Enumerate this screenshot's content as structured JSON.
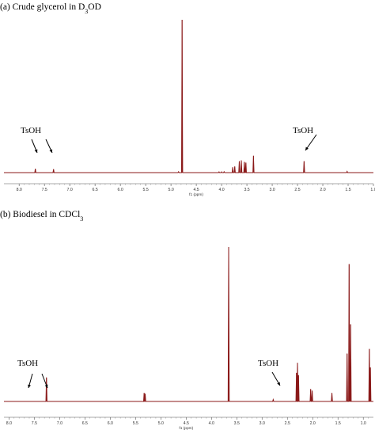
{
  "chart_data": [
    {
      "type": "line",
      "title_main": "(a) Crude glycerol in D",
      "title_sub": "3",
      "title_tail": "OD",
      "xlabel": "f1 (ppm)",
      "xlim": [
        8.3,
        1.0
      ],
      "ticks": [
        "8.0",
        "7.5",
        "7.0",
        "6.5",
        "6.0",
        "5.5",
        "5.0",
        "4.5",
        "4.0",
        "3.5",
        "3.0",
        "2.5",
        "2.0",
        "1.5",
        "1.0"
      ],
      "tick_values": [
        8.0,
        7.5,
        7.0,
        6.5,
        6.0,
        5.5,
        5.0,
        4.5,
        4.0,
        3.5,
        3.0,
        2.5,
        2.0,
        1.5,
        1.0
      ],
      "line_color": "#8b1a1a",
      "peaks": [
        {
          "x": 7.68,
          "y": 0.025
        },
        {
          "x": 7.32,
          "y": 0.022
        },
        {
          "x": 4.85,
          "y": 0.006
        },
        {
          "x": 4.78,
          "y": 1.0
        },
        {
          "x": 4.05,
          "y": 0.005
        },
        {
          "x": 4.0,
          "y": 0.005
        },
        {
          "x": 3.95,
          "y": 0.006
        },
        {
          "x": 3.78,
          "y": 0.035
        },
        {
          "x": 3.74,
          "y": 0.04
        },
        {
          "x": 3.65,
          "y": 0.075
        },
        {
          "x": 3.61,
          "y": 0.08
        },
        {
          "x": 3.55,
          "y": 0.07
        },
        {
          "x": 3.52,
          "y": 0.065
        },
        {
          "x": 3.37,
          "y": 0.11
        },
        {
          "x": 2.37,
          "y": 0.075
        },
        {
          "x": 1.52,
          "y": 0.008
        }
      ],
      "annotations": [
        {
          "text": "TsOH",
          "x": 7.5
        },
        {
          "text": "TsOH",
          "x": 2.37
        }
      ]
    },
    {
      "type": "line",
      "title_main": "(b) Biodiesel in CDCl",
      "title_sub": "3",
      "title_tail": "",
      "xlabel": "f1 (ppm)",
      "xlim": [
        8.1,
        0.8
      ],
      "ticks": [
        "8.0",
        "7.5",
        "7.0",
        "6.5",
        "6.0",
        "5.5",
        "5.0",
        "4.5",
        "4.0",
        "3.5",
        "3.0",
        "2.5",
        "2.0",
        "1.5",
        "1.0"
      ],
      "tick_values": [
        8.0,
        7.5,
        7.0,
        6.5,
        6.0,
        5.5,
        5.0,
        4.5,
        4.0,
        3.5,
        3.0,
        2.5,
        2.0,
        1.5,
        1.0
      ],
      "line_color": "#8b1a1a",
      "peaks": [
        {
          "x": 7.26,
          "y": 0.155
        },
        {
          "x": 5.33,
          "y": 0.055
        },
        {
          "x": 5.31,
          "y": 0.05
        },
        {
          "x": 3.66,
          "y": 1.0
        },
        {
          "x": 2.78,
          "y": 0.012
        },
        {
          "x": 2.32,
          "y": 0.185
        },
        {
          "x": 2.3,
          "y": 0.25
        },
        {
          "x": 2.28,
          "y": 0.17
        },
        {
          "x": 2.04,
          "y": 0.08
        },
        {
          "x": 2.01,
          "y": 0.07
        },
        {
          "x": 1.62,
          "y": 0.055
        },
        {
          "x": 1.32,
          "y": 0.31
        },
        {
          "x": 1.28,
          "y": 0.89
        },
        {
          "x": 1.25,
          "y": 0.5
        },
        {
          "x": 0.88,
          "y": 0.34
        },
        {
          "x": 0.86,
          "y": 0.22
        }
      ],
      "annotations": [
        {
          "text": "TsOH",
          "x": 7.6
        },
        {
          "text": "TsOH",
          "x": 2.5
        }
      ]
    }
  ]
}
